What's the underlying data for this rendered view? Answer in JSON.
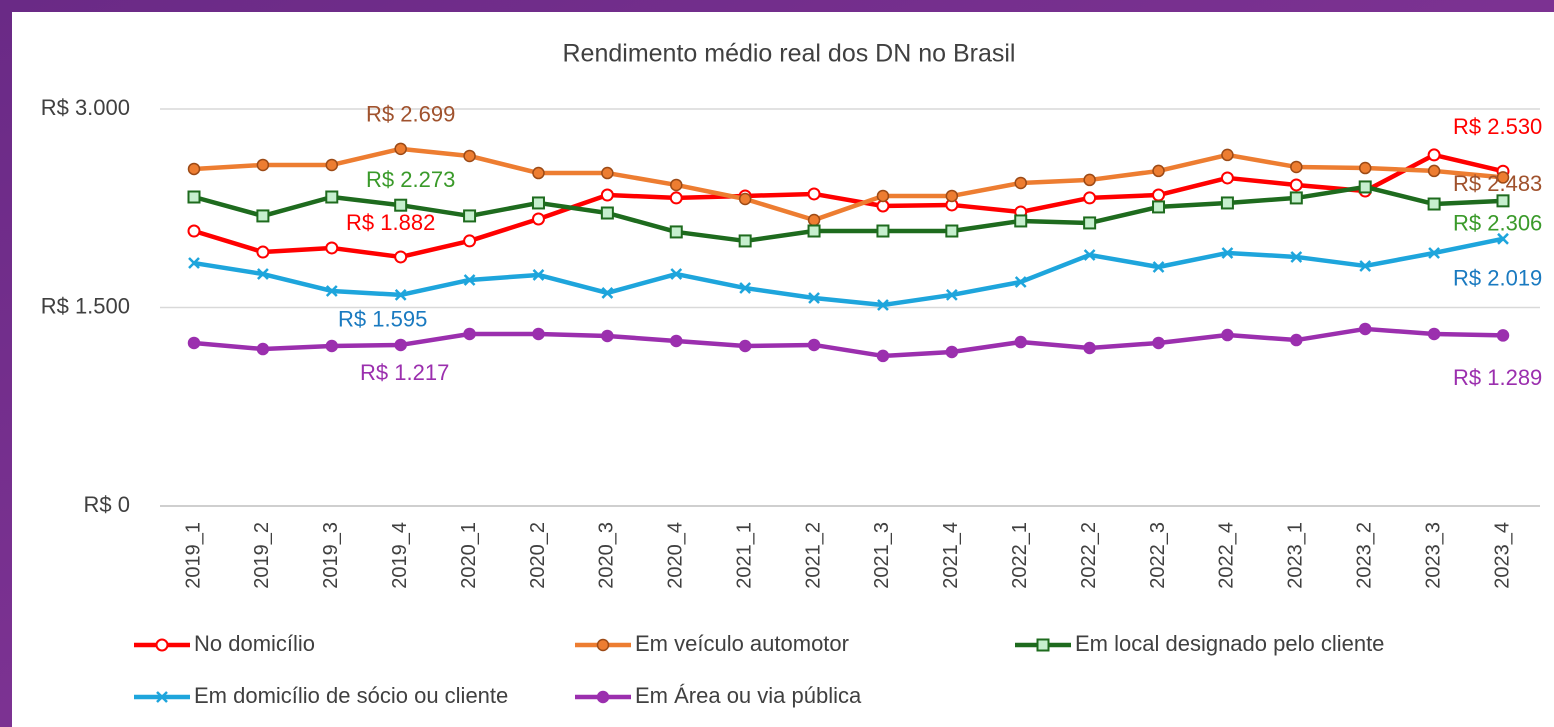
{
  "chart_data": {
    "type": "line",
    "title": "Rendimento médio real dos DN no Brasil",
    "categories": [
      "2019_1",
      "2019_2",
      "2019_3",
      "2019_4",
      "2020_1",
      "2020_2",
      "2020_3",
      "2020_4",
      "2021_1",
      "2021_2",
      "2021_3",
      "2021_4",
      "2022_1",
      "2022_2",
      "2022_3",
      "2022_4",
      "2023_1",
      "2023_2",
      "2023_3",
      "2023_4"
    ],
    "ylim": [
      0,
      3000
    ],
    "yticks": [
      {
        "value": 0,
        "label": "R$ 0"
      },
      {
        "value": 1500,
        "label": "R$ 1.500"
      },
      {
        "value": 3000,
        "label": "R$ 3.000"
      }
    ],
    "grid": true,
    "legend": "bottom",
    "series": [
      {
        "name": "No domicílio",
        "color": "#ff0000",
        "marker": "circle-open",
        "values": [
          2078,
          1919,
          1950,
          1882,
          2003,
          2169,
          2350,
          2328,
          2343,
          2358,
          2267,
          2275,
          2222,
          2328,
          2350,
          2479,
          2426,
          2380,
          2653,
          2530
        ],
        "value_labels": [
          null,
          null,
          null,
          "R$ 1.882",
          null,
          null,
          null,
          null,
          null,
          null,
          null,
          null,
          null,
          null,
          null,
          null,
          null,
          null,
          null,
          "R$ 2.530"
        ]
      },
      {
        "name": "Em veículo automotor",
        "color": "#ed7d31",
        "marker": "circle",
        "values": [
          2547,
          2577,
          2577,
          2699,
          2645,
          2516,
          2516,
          2426,
          2320,
          2161,
          2343,
          2343,
          2441,
          2464,
          2532,
          2653,
          2562,
          2554,
          2532,
          2483
        ],
        "value_labels": [
          null,
          null,
          null,
          "R$ 2.699",
          null,
          null,
          null,
          null,
          null,
          null,
          null,
          null,
          null,
          null,
          null,
          null,
          null,
          null,
          null,
          "R$ 2.483"
        ]
      },
      {
        "name": "Em local designado pelo cliente",
        "color": "#1e6b1e",
        "marker": "square",
        "values": [
          2335,
          2192,
          2335,
          2273,
          2192,
          2290,
          2214,
          2071,
          2003,
          2078,
          2078,
          2078,
          2154,
          2139,
          2260,
          2290,
          2328,
          2411,
          2282,
          2306
        ],
        "value_labels": [
          null,
          null,
          null,
          "R$ 2.273",
          null,
          null,
          null,
          null,
          null,
          null,
          null,
          null,
          null,
          null,
          null,
          null,
          null,
          null,
          null,
          "R$ 2.306"
        ]
      },
      {
        "name": "Em domicílio de sócio ou cliente",
        "color": "#1ea5dc",
        "marker": "x",
        "values": [
          1836,
          1753,
          1625,
          1595,
          1708,
          1746,
          1610,
          1753,
          1647,
          1572,
          1519,
          1595,
          1693,
          1897,
          1806,
          1912,
          1882,
          1814,
          1912,
          2019
        ],
        "value_labels": [
          null,
          null,
          null,
          "R$ 1.595",
          null,
          null,
          null,
          null,
          null,
          null,
          null,
          null,
          null,
          null,
          null,
          null,
          null,
          null,
          null,
          "R$ 2.019"
        ]
      },
      {
        "name": "Em Área ou via pública",
        "color": "#9b2fae",
        "marker": "circle",
        "values": [
          1232,
          1186,
          1209,
          1217,
          1300,
          1300,
          1285,
          1247,
          1209,
          1217,
          1134,
          1164,
          1239,
          1194,
          1232,
          1292,
          1254,
          1338,
          1300,
          1289
        ],
        "value_labels": [
          null,
          null,
          null,
          "R$ 1.217",
          null,
          null,
          null,
          null,
          null,
          null,
          null,
          null,
          null,
          null,
          null,
          null,
          null,
          null,
          null,
          "R$ 1.289"
        ]
      }
    ]
  }
}
